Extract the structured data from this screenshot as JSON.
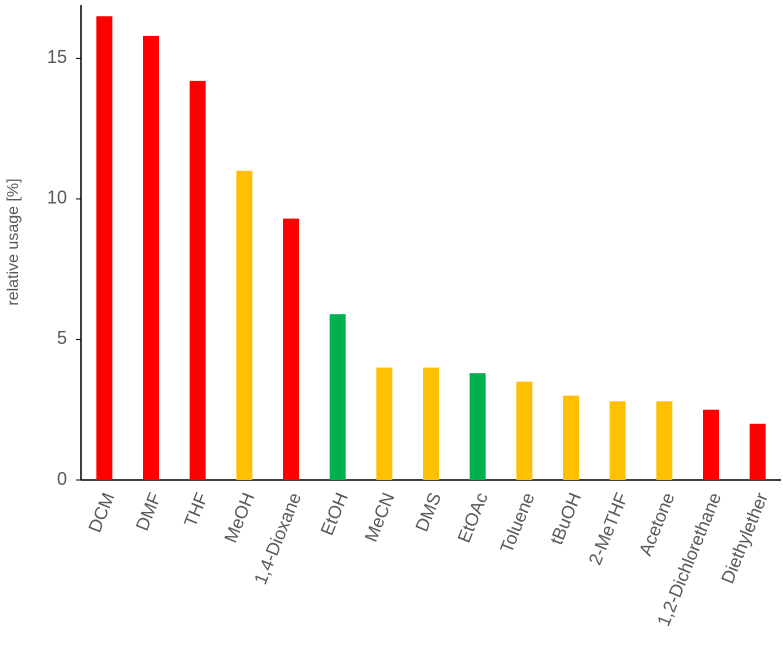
{
  "chart_data": {
    "type": "bar",
    "y_label": "relative usage [%]",
    "categories": [
      "DCM",
      "DMF",
      "THF",
      "MeOH",
      "1,4-Dioxane",
      "EtOH",
      "MeCN",
      "DMS",
      "EtOAc",
      "Toluene",
      "tBuOH",
      "2-MeTHF",
      "Acetone",
      "1,2-Dichlorethane",
      "Diethylether"
    ],
    "values": [
      16.5,
      15.8,
      14.2,
      11.0,
      9.3,
      5.9,
      4.0,
      4.0,
      3.8,
      3.5,
      3.0,
      2.8,
      2.8,
      2.5,
      2.0
    ],
    "colors": [
      "#ff0000",
      "#ff0000",
      "#ff0000",
      "#ffc000",
      "#ff0000",
      "#00b050",
      "#ffc000",
      "#ffc000",
      "#00b050",
      "#ffc000",
      "#ffc000",
      "#ffc000",
      "#ffc000",
      "#ff0000",
      "#ff0000"
    ],
    "ylim": [
      0,
      16.9
    ],
    "yticks": [
      0,
      5,
      10,
      15
    ],
    "grid": false
  }
}
